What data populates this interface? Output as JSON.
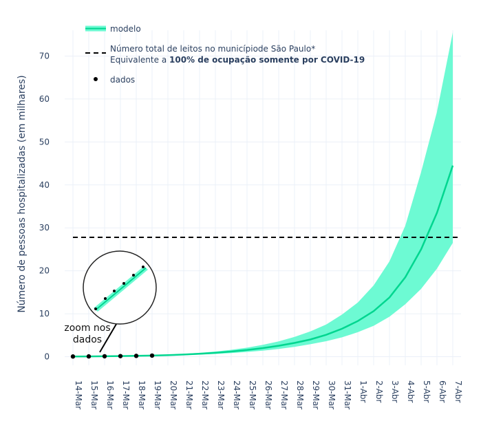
{
  "chart_data": {
    "type": "line",
    "title": "",
    "xlabel": "",
    "ylabel": "Número de pessoas hospitalizadas (em milhares)",
    "ylim": [
      -2,
      76
    ],
    "yticks": [
      0,
      10,
      20,
      30,
      40,
      50,
      60,
      70
    ],
    "grid": true,
    "legend_position": "top-left",
    "categories": [
      "14-Mar",
      "15-Mar",
      "16-Mar",
      "17-Mar",
      "18-Mar",
      "19-Mar",
      "20-Mar",
      "21-Mar",
      "22-Mar",
      "23-Mar",
      "24-Mar",
      "25-Mar",
      "26-Mar",
      "27-Mar",
      "28-Mar",
      "29-Mar",
      "30-Mar",
      "31-Mar",
      "1-Abr",
      "2-Abr",
      "3-Abr",
      "4-Abr",
      "5-Abr",
      "6-Abr",
      "7-Abr"
    ],
    "series": [
      {
        "name": "modelo",
        "kind": "line-band",
        "values": [
          0.05,
          0.07,
          0.1,
          0.14,
          0.19,
          0.26,
          0.37,
          0.5,
          0.68,
          0.9,
          1.2,
          1.55,
          2.0,
          2.55,
          3.2,
          4.0,
          5.1,
          6.5,
          8.3,
          10.6,
          13.8,
          18.5,
          25.0,
          33.5,
          44.5
        ],
        "lower": [
          0.04,
          0.05,
          0.07,
          0.1,
          0.14,
          0.19,
          0.26,
          0.36,
          0.49,
          0.65,
          0.85,
          1.1,
          1.4,
          1.8,
          2.3,
          2.9,
          3.6,
          4.5,
          5.7,
          7.2,
          9.3,
          12.2,
          15.8,
          20.5,
          26.5
        ],
        "upper": [
          0.06,
          0.08,
          0.12,
          0.17,
          0.24,
          0.34,
          0.48,
          0.66,
          0.9,
          1.2,
          1.6,
          2.1,
          2.75,
          3.55,
          4.6,
          5.9,
          7.5,
          9.8,
          12.6,
          16.6,
          22.2,
          30.5,
          43.0,
          57.0,
          75.5
        ],
        "color": "#00d68f",
        "band_color": "#6dfad3"
      },
      {
        "name": "Número total de leitos no municípiode São Paulo*",
        "name_line2_prefix": "Equivalente a ",
        "name_line2_bold": "100% de ocupação somente por COVID-19",
        "kind": "hline",
        "value": 27.8,
        "color": "#000000"
      },
      {
        "name": "dados",
        "kind": "scatter",
        "x": [
          "14-Mar",
          "15-Mar",
          "16-Mar",
          "17-Mar",
          "18-Mar",
          "19-Mar"
        ],
        "values": [
          0.05,
          0.07,
          0.1,
          0.14,
          0.19,
          0.26
        ],
        "color": "#000000"
      }
    ],
    "annotation": {
      "text_line1": "zoom nos",
      "text_line2": "dados"
    }
  }
}
